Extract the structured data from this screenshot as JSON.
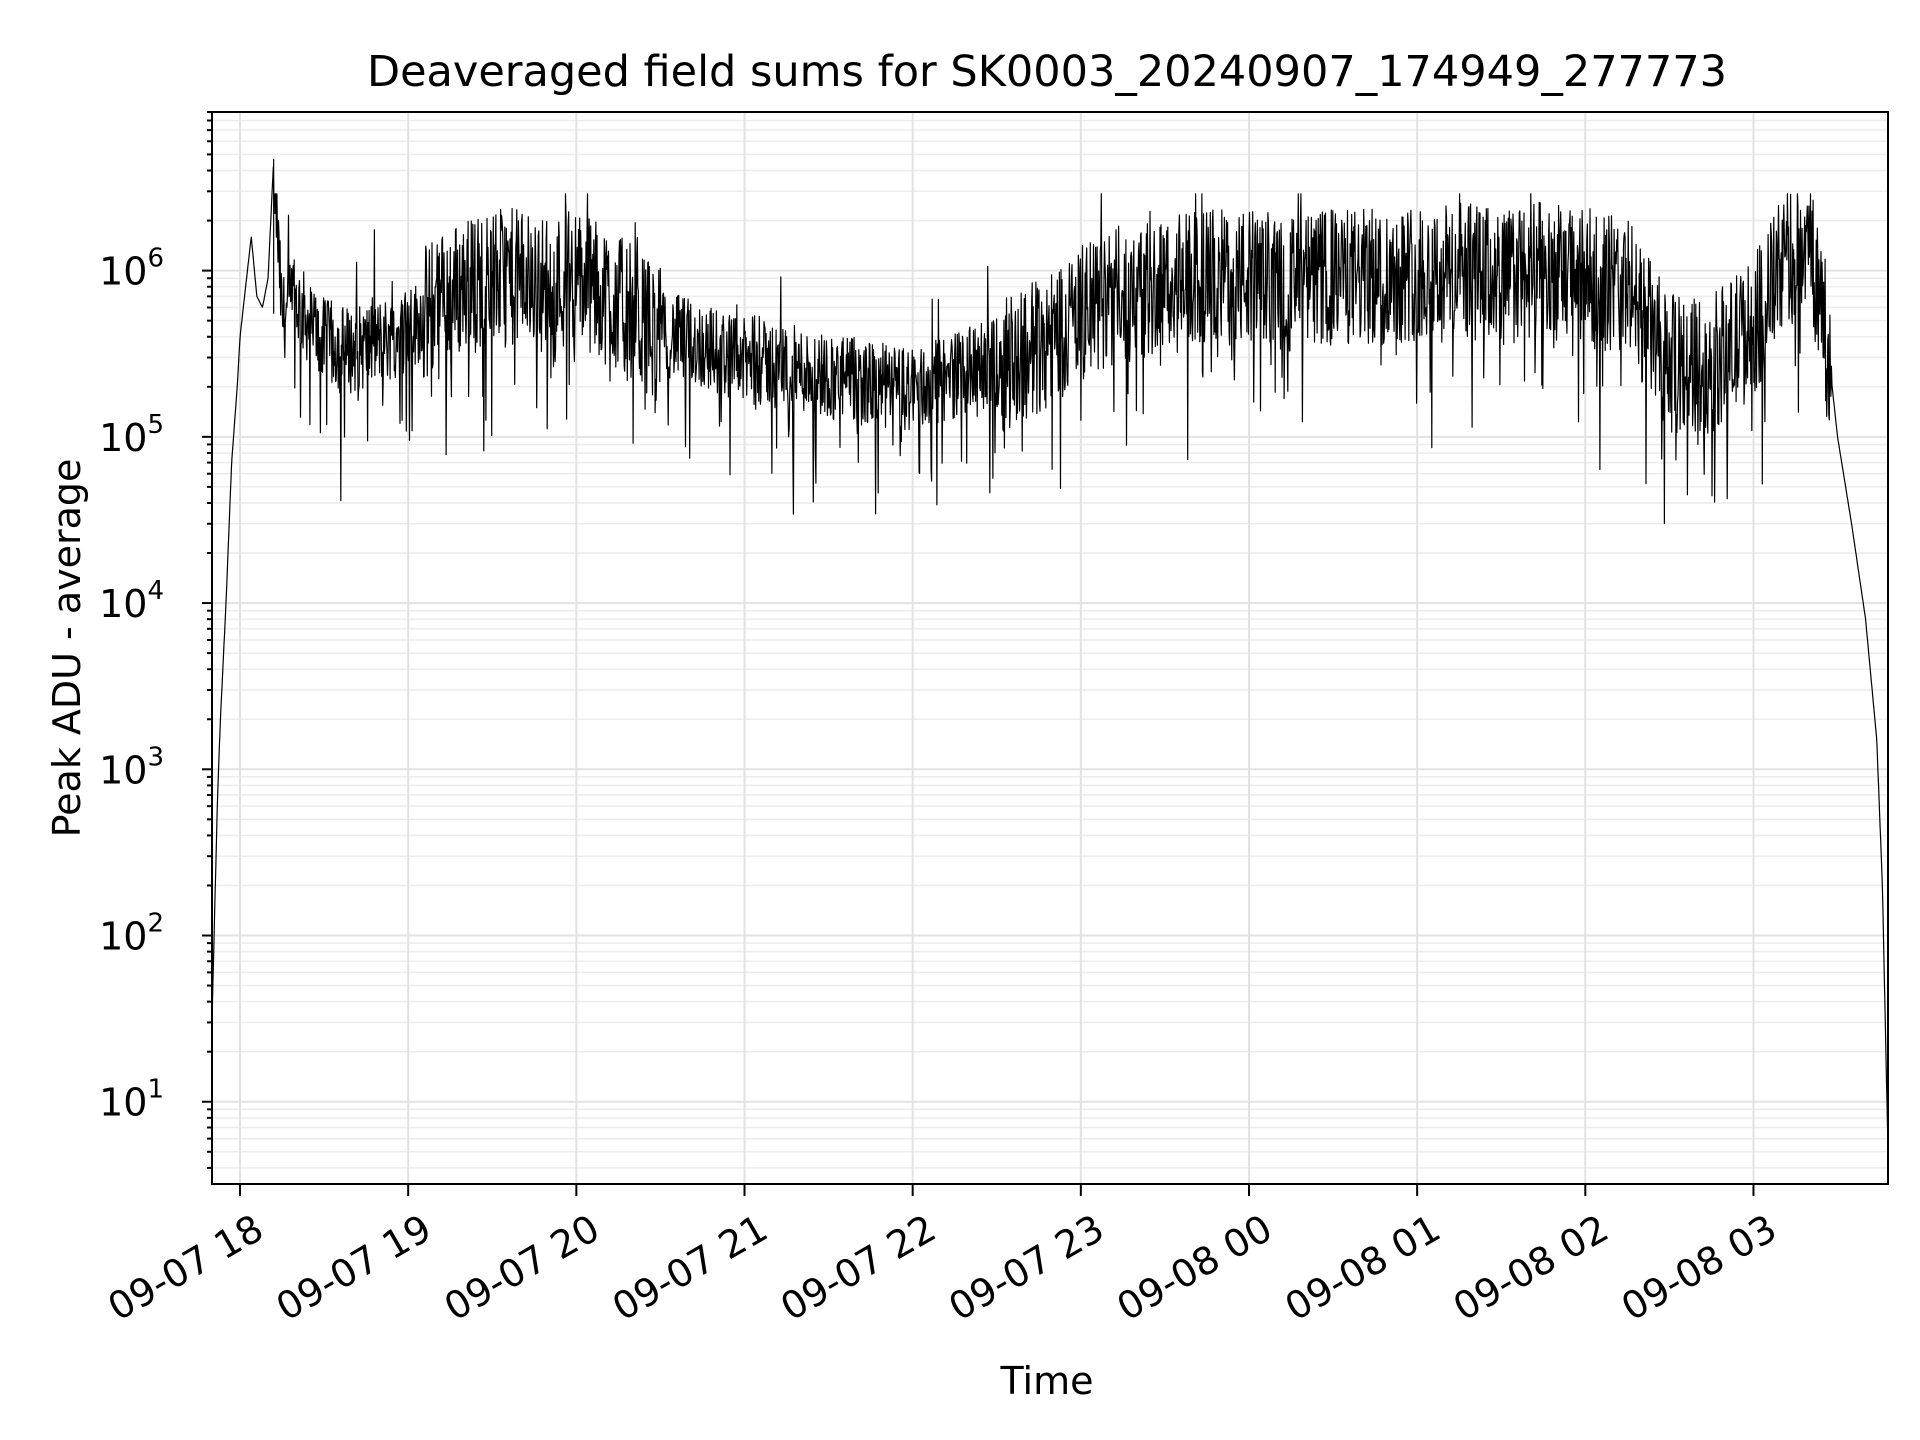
{
  "chart_data": {
    "type": "line",
    "title": "Deaveraged field sums for SK0003_20240907_174949_277773",
    "xlabel": "Time",
    "ylabel": "Peak ADU - average",
    "yscale": "log",
    "ylim": [
      3.2,
      9000000
    ],
    "xlim": [
      "2024-09-07 17:50",
      "2024-09-08 03:48"
    ],
    "grid": true,
    "legend": "none",
    "line_color": "#000000",
    "x_ticks": [
      "09-07 18",
      "09-07 19",
      "09-07 20",
      "09-07 21",
      "09-07 22",
      "09-07 23",
      "09-08 00",
      "09-08 01",
      "09-08 02",
      "09-08 03"
    ],
    "y_ticks": [
      {
        "base": "10",
        "exp": "1"
      },
      {
        "base": "10",
        "exp": "2"
      },
      {
        "base": "10",
        "exp": "3"
      },
      {
        "base": "10",
        "exp": "4"
      },
      {
        "base": "10",
        "exp": "5"
      },
      {
        "base": "10",
        "exp": "6"
      }
    ],
    "series": [
      {
        "x": [
          "2024-09-07 17:50",
          "2024-09-07 17:51",
          "2024-09-07 17:52",
          "2024-09-07 17:53",
          "2024-09-07 17:55",
          "2024-09-07 17:57",
          "2024-09-07 17:59",
          "2024-09-07 18:00",
          "2024-09-07 18:02",
          "2024-09-07 18:04",
          "2024-09-07 18:06",
          "2024-09-07 18:08",
          "2024-09-07 18:10",
          "2024-09-07 18:12",
          "2024-09-07 18:15",
          "2024-09-07 18:20",
          "2024-09-07 18:25",
          "2024-09-07 18:30",
          "2024-09-07 18:40",
          "2024-09-07 18:50",
          "2024-09-07 19:00",
          "2024-09-07 19:10",
          "2024-09-07 19:20",
          "2024-09-07 19:30",
          "2024-09-07 19:40",
          "2024-09-07 19:50",
          "2024-09-07 20:00",
          "2024-09-07 20:10",
          "2024-09-07 20:20",
          "2024-09-07 20:30",
          "2024-09-07 20:40",
          "2024-09-07 20:50",
          "2024-09-07 21:00",
          "2024-09-07 21:15",
          "2024-09-07 21:30",
          "2024-09-07 21:45",
          "2024-09-07 22:00",
          "2024-09-07 22:15",
          "2024-09-07 22:30",
          "2024-09-07 22:45",
          "2024-09-07 23:00",
          "2024-09-07 23:15",
          "2024-09-07 23:30",
          "2024-09-07 23:45",
          "2024-09-08 00:00",
          "2024-09-08 00:15",
          "2024-09-08 00:30",
          "2024-09-08 00:45",
          "2024-09-08 01:00",
          "2024-09-08 01:15",
          "2024-09-08 01:30",
          "2024-09-08 01:45",
          "2024-09-08 02:00",
          "2024-09-08 02:15",
          "2024-09-08 02:30",
          "2024-09-08 02:45",
          "2024-09-08 03:00",
          "2024-09-08 03:10",
          "2024-09-08 03:15",
          "2024-09-08 03:20",
          "2024-09-08 03:25",
          "2024-09-08 03:30",
          "2024-09-08 03:35",
          "2024-09-08 03:40",
          "2024-09-08 03:44",
          "2024-09-08 03:46",
          "2024-09-08 03:48"
        ],
        "y": [
          30,
          150,
          700,
          2000,
          10000,
          70000,
          200000,
          400000,
          800000,
          1600000,
          700000,
          600000,
          900000,
          4700000,
          550000,
          700000,
          500000,
          400000,
          350000,
          400000,
          450000,
          700000,
          900000,
          1000000,
          1000000,
          900000,
          1000000,
          800000,
          600000,
          450000,
          400000,
          350000,
          300000,
          280000,
          250000,
          220000,
          200000,
          250000,
          300000,
          400000,
          600000,
          800000,
          900000,
          1000000,
          1000000,
          900000,
          1000000,
          1000000,
          1100000,
          1100000,
          1000000,
          1100000,
          1000000,
          900000,
          300000,
          300000,
          500000,
          1200000,
          1400000,
          1500000,
          600000,
          100000,
          30000,
          8000,
          1500,
          200,
          5
        ]
      }
    ]
  }
}
